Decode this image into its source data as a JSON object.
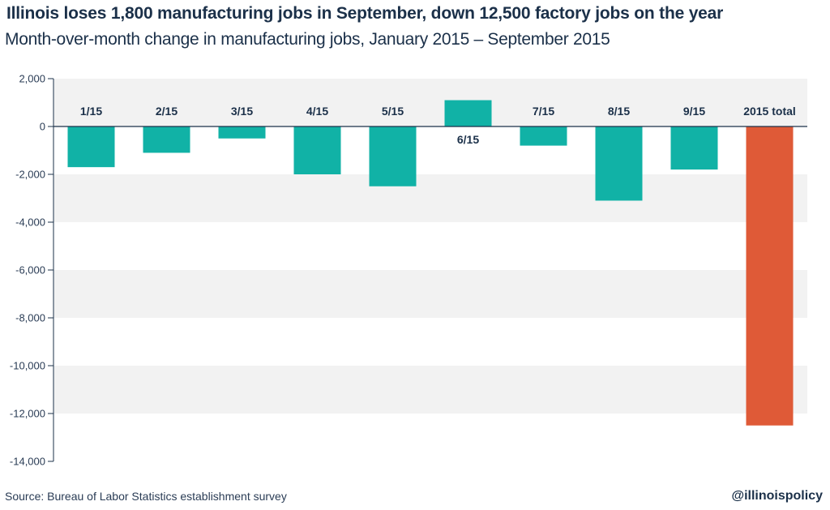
{
  "header": {
    "title": "Illinois loses 1,800 manufacturing jobs in September, down 12,500 factory jobs on the year",
    "subtitle": "Month-over-month change in manufacturing jobs, January 2015 – September 2015"
  },
  "footer": {
    "source": "Source: Bureau of Labor Statistics establishment survey",
    "handle": "@illinoispolicy"
  },
  "colors": {
    "month_bar": "#11b2a6",
    "total_bar": "#df5a37",
    "band": "#f2f2f2",
    "zero_line": "#1b3049"
  },
  "chart_data": {
    "type": "bar",
    "categories": [
      "1/15",
      "2/15",
      "3/15",
      "4/15",
      "5/15",
      "6/15",
      "7/15",
      "8/15",
      "9/15",
      "2015 total"
    ],
    "values": [
      -1700,
      -1100,
      -500,
      -2000,
      -2500,
      1100,
      -800,
      -3100,
      -1800,
      -12500
    ],
    "ylim": [
      -14000,
      2000
    ],
    "yticks": [
      2000,
      0,
      -2000,
      -4000,
      -6000,
      -8000,
      -10000,
      -12000,
      -14000
    ],
    "ytick_labels": [
      "2,000",
      "0",
      "-2,000",
      "-4,000",
      "-6,000",
      "-8,000",
      "-10,000",
      "-12,000",
      "-14,000"
    ],
    "xlabel": "",
    "ylabel": "",
    "grid": "alternating horizontal bands",
    "legend": "none"
  }
}
